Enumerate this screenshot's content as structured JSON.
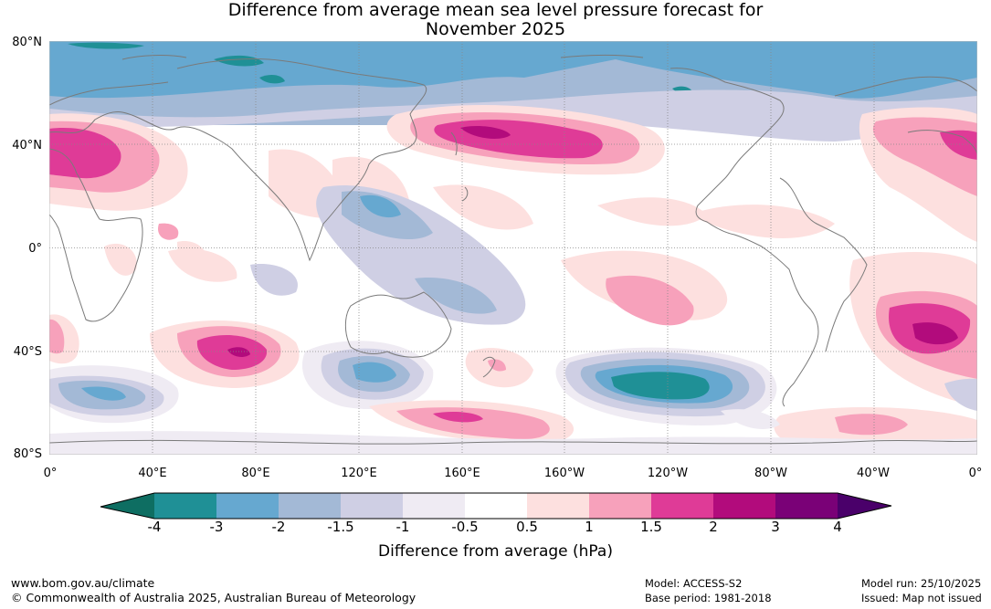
{
  "title_line1": "Difference from average mean sea level pressure forecast for",
  "title_line2": "November 2025",
  "lat_labels": [
    "80°N",
    "40°N",
    "0°",
    "40°S",
    "80°S"
  ],
  "lon_labels": [
    "0°",
    "40°E",
    "80°E",
    "120°E",
    "160°E",
    "160°W",
    "120°W",
    "80°W",
    "40°W",
    "0°"
  ],
  "colorbar": {
    "title": "Difference from average (hPa)",
    "ticks": [
      "-4",
      "-3",
      "-2",
      "-1.5",
      "-1",
      "-0.5",
      "0.5",
      "1",
      "1.5",
      "2",
      "3",
      "4"
    ],
    "colors": {
      "below_min": "#0e6e62",
      "c1": "#1f9096",
      "c2": "#66a8d0",
      "c3": "#a3b9d6",
      "c4": "#cfcfe4",
      "c5": "#efebf3",
      "c6": "#ffffff",
      "c7": "#fde0df",
      "c8": "#f7a1bb",
      "c9": "#df3b97",
      "c10": "#b20b7c",
      "c11": "#7a0177",
      "above_max": "#4a006a"
    }
  },
  "footer": {
    "website": "www.bom.gov.au/climate",
    "copyright": "© Commonwealth of Australia 2025, Australian Bureau of Meteorology",
    "model": "Model: ACCESS-S2",
    "base_period": "Base period: 1981-2018",
    "model_run": "Model run: 25/10/2025",
    "issued": "Issued: Map not issued"
  }
}
